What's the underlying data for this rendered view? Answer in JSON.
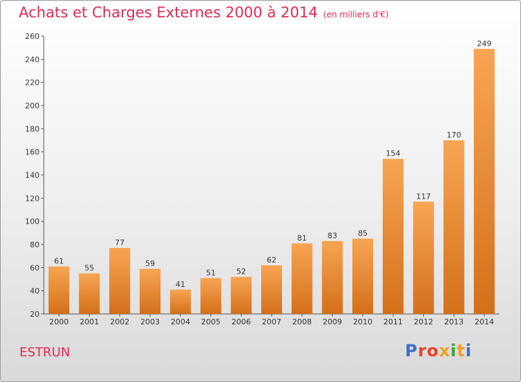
{
  "header": {
    "title": "Achats et Charges Externes 2000 à 2014",
    "unit": "(en milliers d'€)"
  },
  "commune": "ESTRUN",
  "logo": {
    "text": "Proxiti",
    "letter_colors": [
      "#3a6fc4",
      "#e8402c",
      "#e8402c",
      "#f0a31c",
      "#3aa33a",
      "#f0a31c",
      "#3a6fc4"
    ]
  },
  "colors": {
    "bar_top": "#f7a553",
    "bar_bottom": "#d46f19",
    "accent": "#e02a55"
  },
  "chart_data": {
    "type": "bar",
    "categories": [
      "2000",
      "2001",
      "2002",
      "2003",
      "2004",
      "2005",
      "2006",
      "2007",
      "2008",
      "2009",
      "2010",
      "2011",
      "2012",
      "2013",
      "2014"
    ],
    "values": [
      61,
      55,
      77,
      59,
      41,
      51,
      52,
      62,
      81,
      83,
      85,
      154,
      117,
      170,
      249
    ],
    "ylim": [
      20,
      260
    ],
    "yticks": [
      20,
      40,
      60,
      80,
      100,
      120,
      140,
      160,
      180,
      200,
      220,
      240,
      260
    ],
    "grid": false,
    "data_labels": true
  }
}
